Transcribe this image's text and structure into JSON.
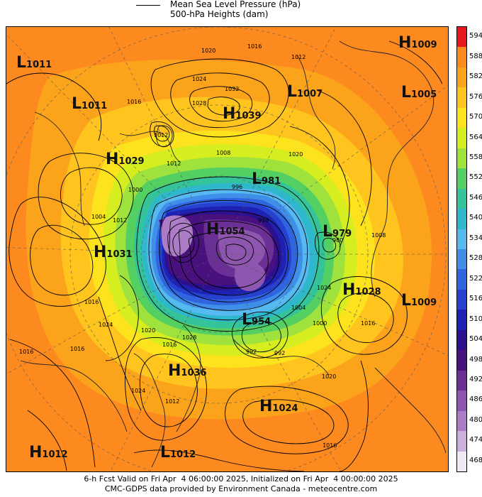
{
  "legend": {
    "line1": "Mean Sea Level Pressure (hPa)",
    "line2": "500-hPa Heights (dam)"
  },
  "colorbar": {
    "labels": [
      "594",
      "588",
      "582",
      "576",
      "570",
      "564",
      "558",
      "552",
      "546",
      "540",
      "534",
      "528",
      "522",
      "516",
      "510",
      "504",
      "498",
      "492",
      "486",
      "480",
      "474",
      "468"
    ],
    "colors": [
      "#e8171c",
      "#fd8a1f",
      "#fca31c",
      "#ffc41e",
      "#fde21e",
      "#d6ee1f",
      "#9fe23e",
      "#54cf62",
      "#35c39a",
      "#2fb8cc",
      "#56b9ef",
      "#3f8ee8",
      "#2f66df",
      "#2640cf",
      "#1d22b3",
      "#2d108e",
      "#48117d",
      "#6c2f95",
      "#8e56ae",
      "#ac7dc6",
      "#cab0dd",
      "#f0eaf6"
    ]
  },
  "centers": [
    {
      "type": "L",
      "value": "1011"
    },
    {
      "type": "L",
      "value": "1011"
    },
    {
      "type": "H",
      "value": "1039"
    },
    {
      "type": "L",
      "value": "1007"
    },
    {
      "type": "H",
      "value": "1009"
    },
    {
      "type": "L",
      "value": "1005"
    },
    {
      "type": "H",
      "value": "1029"
    },
    {
      "type": "L",
      "value": "981"
    },
    {
      "type": "H",
      "value": "1054"
    },
    {
      "type": "L",
      "value": "979"
    },
    {
      "type": "H",
      "value": "1031"
    },
    {
      "type": "H",
      "value": "1028"
    },
    {
      "type": "L",
      "value": "1009"
    },
    {
      "type": "L",
      "value": "954"
    },
    {
      "type": "H",
      "value": "1036"
    },
    {
      "type": "H",
      "value": "1024"
    },
    {
      "type": "H",
      "value": "1012"
    },
    {
      "type": "L",
      "value": "1012"
    }
  ],
  "isobar_labels": [
    "1020",
    "1016",
    "1012",
    "1032",
    "1028",
    "1024",
    "1012",
    "1008",
    "1020",
    "1016",
    "1012",
    "1000",
    "996",
    "1004",
    "1012",
    "1016",
    "1024",
    "1016",
    "1020",
    "1016",
    "992",
    "992",
    "1004",
    "1000",
    "1020",
    "1016",
    "1016",
    "1024",
    "1008",
    "1012",
    "1028",
    "1024",
    "1016",
    "980",
    "996"
  ],
  "footer": {
    "line1": "6-h Fcst Valid on Fri Apr  4 06:00:00 2025, Initialized on Fri Apr  4 00:00:00 2025",
    "line2": "CMC-GDPS data provided by Environment Canada - meteocentre.com"
  }
}
